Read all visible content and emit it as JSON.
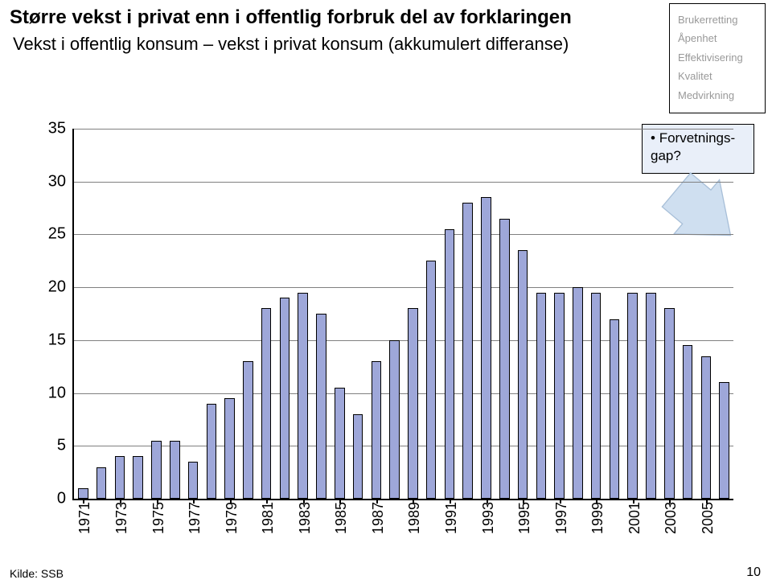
{
  "title": "Større vekst i privat enn i offentlig forbruk del av forklaringen",
  "subtitle": "Vekst i offentlig konsum – vekst i privat konsum (akkumulert differanse)",
  "sidebar": {
    "items": [
      "Brukerretting",
      "Åpenhet",
      "Effektivisering",
      "Kvalitet",
      "Medvirkning"
    ]
  },
  "callout": {
    "text": "Forvetnings-\ngap?"
  },
  "arrow": {
    "fill": "#cfdff0",
    "stroke": "#a8bfd8"
  },
  "source": "Kilde: SSB",
  "page": "10",
  "chart": {
    "type": "bar",
    "years": [
      "1971",
      "1972",
      "1973",
      "1974",
      "1975",
      "1976",
      "1977",
      "1978",
      "1979",
      "1980",
      "1981",
      "1982",
      "1983",
      "1984",
      "1985",
      "1986",
      "1987",
      "1988",
      "1989",
      "1990",
      "1991",
      "1992",
      "1993",
      "1994",
      "1995",
      "1996",
      "1997",
      "1998",
      "1999",
      "2000",
      "2001",
      "2002",
      "2003",
      "2004",
      "2005",
      "2006"
    ],
    "values": [
      1,
      3,
      4,
      4,
      5.5,
      5.5,
      3.5,
      9,
      9.5,
      13,
      18,
      19,
      19.5,
      17.5,
      10.5,
      8,
      13,
      15,
      18,
      22.5,
      25.5,
      28,
      28.5,
      26.5,
      23.5,
      19.5,
      19.5,
      20,
      19.5,
      17,
      19.5,
      19.5,
      18,
      14.5,
      13.5,
      11
    ],
    "x_tick_labels": [
      "1971",
      "",
      "1973",
      "",
      "1975",
      "",
      "1977",
      "",
      "1979",
      "",
      "1981",
      "",
      "1983",
      "",
      "1985",
      "",
      "1987",
      "",
      "1989",
      "",
      "1991",
      "",
      "1993",
      "",
      "1995",
      "",
      "1997",
      "",
      "1999",
      "",
      "2001",
      "",
      "2003",
      "",
      "2005",
      ""
    ],
    "ylim": [
      0,
      35
    ],
    "ytick_step": 5,
    "bar_color": "#9ea7d9",
    "bar_border": "#000000",
    "grid_color": "#808080",
    "axis_color": "#000000",
    "background_color": "#ffffff",
    "bar_width_ratio": 0.55,
    "label_fontsize": 20,
    "x_label_rotation": -90
  }
}
